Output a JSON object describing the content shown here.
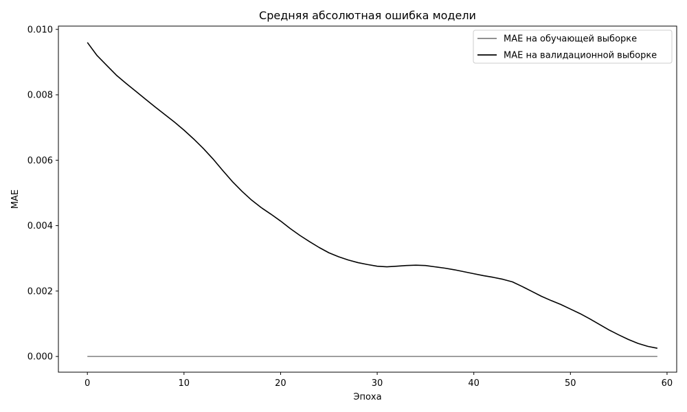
{
  "chart_data": {
    "type": "line",
    "title": "Средняя абсолютная ошибка модели",
    "xlabel": "Эпоха",
    "ylabel": "MAE",
    "xlim": [
      -3,
      61
    ],
    "ylim": [
      -0.00048,
      0.0101
    ],
    "xticks": [
      0,
      10,
      20,
      30,
      40,
      50,
      60
    ],
    "xtick_labels": [
      "0",
      "10",
      "20",
      "30",
      "40",
      "50",
      "60"
    ],
    "yticks": [
      0.0,
      0.002,
      0.004,
      0.006,
      0.008,
      0.01
    ],
    "ytick_labels": [
      "0.000",
      "0.002",
      "0.004",
      "0.006",
      "0.008",
      "0.010"
    ],
    "grid": false,
    "legend_position": "top-right",
    "x": [
      0,
      1,
      2,
      3,
      4,
      5,
      6,
      7,
      8,
      9,
      10,
      11,
      12,
      13,
      14,
      15,
      16,
      17,
      18,
      19,
      20,
      21,
      22,
      23,
      24,
      25,
      26,
      27,
      28,
      29,
      30,
      31,
      32,
      33,
      34,
      35,
      36,
      37,
      38,
      39,
      40,
      41,
      42,
      43,
      44,
      45,
      46,
      47,
      48,
      49,
      50,
      51,
      52,
      53,
      54,
      55,
      56,
      57,
      58,
      59
    ],
    "series": [
      {
        "name": "MAE на обучающей выборке",
        "color": "#808080",
        "values": [
          0,
          0,
          0,
          0,
          0,
          0,
          0,
          0,
          0,
          0,
          0,
          0,
          0,
          0,
          0,
          0,
          0,
          0,
          0,
          0,
          0,
          0,
          0,
          0,
          0,
          0,
          0,
          0,
          0,
          0,
          0,
          0,
          0,
          0,
          0,
          0,
          0,
          0,
          0,
          0,
          0,
          0,
          0,
          0,
          0,
          0,
          0,
          0,
          0,
          0,
          0,
          0,
          0,
          0,
          0,
          0,
          0,
          0,
          0,
          0
        ]
      },
      {
        "name": "MAE на валидационной выборке",
        "color": "#000000",
        "values": [
          0.0096,
          0.0092,
          0.0089,
          0.0086,
          0.00835,
          0.00811,
          0.00787,
          0.00763,
          0.0074,
          0.00717,
          0.00692,
          0.00665,
          0.00636,
          0.00604,
          0.00569,
          0.00535,
          0.00505,
          0.00478,
          0.00455,
          0.00435,
          0.00414,
          0.00391,
          0.0037,
          0.00351,
          0.00333,
          0.00317,
          0.00305,
          0.00295,
          0.00287,
          0.00281,
          0.00276,
          0.00274,
          0.00276,
          0.00278,
          0.00279,
          0.00278,
          0.00274,
          0.0027,
          0.00265,
          0.00259,
          0.00253,
          0.00247,
          0.00242,
          0.00236,
          0.00228,
          0.00214,
          0.00199,
          0.00184,
          0.00171,
          0.00159,
          0.00145,
          0.00131,
          0.00115,
          0.00098,
          0.00081,
          0.00066,
          0.00052,
          0.0004,
          0.00031,
          0.00025
        ]
      }
    ]
  }
}
